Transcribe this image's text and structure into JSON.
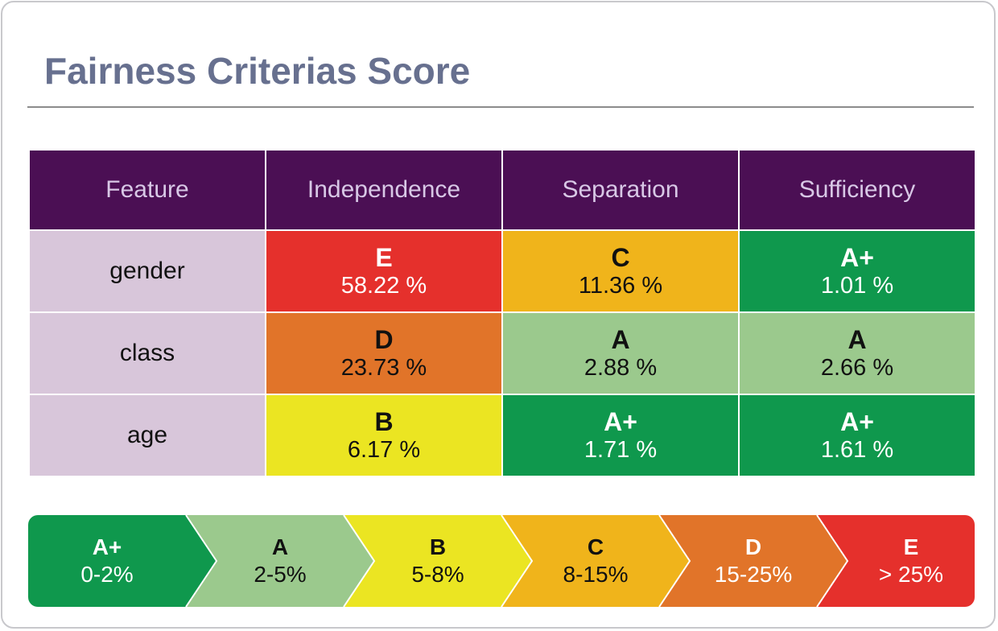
{
  "title": "Fairness Criterias Score",
  "table": {
    "headers": [
      "Feature",
      "Independence",
      "Separation",
      "Sufficiency"
    ],
    "rows": [
      {
        "feature": "gender",
        "cells": [
          {
            "grade": "E",
            "value": "58.22 %",
            "bg": "#e5302c",
            "fg": "#ffffff"
          },
          {
            "grade": "C",
            "value": "11.36 %",
            "bg": "#f0b41b",
            "fg": "#111111"
          },
          {
            "grade": "A+",
            "value": "1.01 %",
            "bg": "#0f984d",
            "fg": "#ffffff"
          }
        ]
      },
      {
        "feature": "class",
        "cells": [
          {
            "grade": "D",
            "value": "23.73 %",
            "bg": "#e17429",
            "fg": "#111111"
          },
          {
            "grade": "A",
            "value": "2.88 %",
            "bg": "#9bc98d",
            "fg": "#111111"
          },
          {
            "grade": "A",
            "value": "2.66 %",
            "bg": "#9bc98d",
            "fg": "#111111"
          }
        ]
      },
      {
        "feature": "age",
        "cells": [
          {
            "grade": "B",
            "value": "6.17 %",
            "bg": "#ebe522",
            "fg": "#111111"
          },
          {
            "grade": "A+",
            "value": "1.71 %",
            "bg": "#0f984d",
            "fg": "#ffffff"
          },
          {
            "grade": "A+",
            "value": "1.61 %",
            "bg": "#0f984d",
            "fg": "#ffffff"
          }
        ]
      }
    ]
  },
  "legend": [
    {
      "grade": "A+",
      "range": "0-2%",
      "bg": "#0f984d",
      "fg": "#ffffff"
    },
    {
      "grade": "A",
      "range": "2-5%",
      "bg": "#9bc98d",
      "fg": "#111111"
    },
    {
      "grade": "B",
      "range": "5-8%",
      "bg": "#ebe522",
      "fg": "#111111"
    },
    {
      "grade": "C",
      "range": "8-15%",
      "bg": "#f0b41b",
      "fg": "#111111"
    },
    {
      "grade": "D",
      "range": "15-25%",
      "bg": "#e17429",
      "fg": "#ffffff"
    },
    {
      "grade": "E",
      "range": "> 25%",
      "bg": "#e5302c",
      "fg": "#ffffff"
    }
  ]
}
